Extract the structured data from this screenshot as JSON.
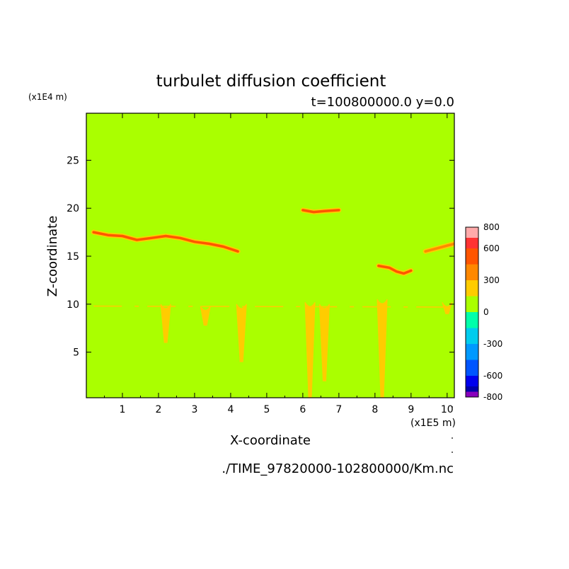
{
  "chart_data": {
    "type": "heatmap",
    "title": "turbulet diffusion coefficient",
    "subtitle": "t=100800000.0 y=0.0",
    "xlabel": "X-coordinate",
    "ylabel": "Z-coordinate",
    "x_unit": "(x1E5 m)",
    "y_unit": "(x1E4 m)",
    "source_file": "./TIME_97820000-102800000/Km.nc",
    "xlim": [
      0,
      10.2
    ],
    "ylim": [
      0.25,
      29.9
    ],
    "x_ticks": [
      1,
      2,
      3,
      4,
      5,
      6,
      7,
      8,
      9,
      10
    ],
    "y_ticks": [
      5,
      10,
      15,
      20,
      25
    ],
    "background_level": "0 to 300",
    "colorbar": {
      "tick_labels": [
        "800",
        "600",
        "300",
        "0",
        "-300",
        "-600",
        "-800"
      ],
      "levels": [
        {
          "from": 700,
          "to": 800,
          "color": "#ffaaaa"
        },
        {
          "from": 600,
          "to": 700,
          "color": "#ff3333"
        },
        {
          "from": 450,
          "to": 600,
          "color": "#ff5500"
        },
        {
          "from": 300,
          "to": 450,
          "color": "#ff8800"
        },
        {
          "from": 150,
          "to": 300,
          "color": "#ffcc00"
        },
        {
          "from": 0,
          "to": 150,
          "color": "#aaff00"
        },
        {
          "from": -150,
          "to": 0,
          "color": "#00ffaa"
        },
        {
          "from": -300,
          "to": -150,
          "color": "#00ccee"
        },
        {
          "from": -450,
          "to": -300,
          "color": "#0099ff"
        },
        {
          "from": -600,
          "to": -450,
          "color": "#0055ff"
        },
        {
          "from": -700,
          "to": -600,
          "color": "#0000ee"
        },
        {
          "from": -750,
          "to": -700,
          "color": "#0000aa"
        },
        {
          "from": -800,
          "to": -750,
          "color": "#8800bb"
        }
      ]
    },
    "features": [
      {
        "name": "upper-band-left",
        "level": "high",
        "points": [
          [
            0.2,
            17.5
          ],
          [
            0.6,
            17.2
          ],
          [
            1.0,
            17.1
          ],
          [
            1.4,
            16.7
          ],
          [
            1.8,
            16.9
          ],
          [
            2.2,
            17.1
          ],
          [
            2.6,
            16.9
          ],
          [
            3.0,
            16.5
          ],
          [
            3.4,
            16.3
          ],
          [
            3.8,
            16.0
          ],
          [
            4.2,
            15.5
          ]
        ]
      },
      {
        "name": "upper-band-right",
        "level": "high",
        "points": [
          [
            8.1,
            14.0
          ],
          [
            8.4,
            13.8
          ],
          [
            8.6,
            13.4
          ],
          [
            8.8,
            13.2
          ],
          [
            9.0,
            13.5
          ]
        ]
      },
      {
        "name": "upper-band-far-right",
        "level": "mid",
        "points": [
          [
            9.4,
            15.5
          ],
          [
            9.7,
            15.8
          ],
          [
            10.0,
            16.1
          ],
          [
            10.2,
            16.3
          ]
        ]
      },
      {
        "name": "cloud-top-patch",
        "level": "high",
        "points": [
          [
            6.0,
            19.8
          ],
          [
            6.3,
            19.6
          ],
          [
            6.6,
            19.7
          ],
          [
            7.0,
            19.8
          ]
        ]
      },
      {
        "name": "plume-x2.2",
        "level": "low",
        "x": 2.2,
        "z_top": 10.0,
        "z_bottom": 6.0
      },
      {
        "name": "plume-x3.3",
        "level": "low",
        "x": 3.3,
        "z_top": 9.8,
        "z_bottom": 7.8
      },
      {
        "name": "plume-x4.3",
        "level": "low",
        "x": 4.3,
        "z_top": 10.0,
        "z_bottom": 4.0
      },
      {
        "name": "plume-x6.2",
        "level": "low",
        "x": 6.2,
        "z_top": 10.2,
        "z_bottom": 0.3
      },
      {
        "name": "plume-x6.6",
        "level": "low",
        "x": 6.6,
        "z_top": 10.0,
        "z_bottom": 2.0
      },
      {
        "name": "plume-x8.2",
        "level": "low",
        "x": 8.2,
        "z_top": 10.5,
        "z_bottom": 0.3
      },
      {
        "name": "plume-x10.0",
        "level": "low",
        "x": 10.0,
        "z_top": 10.2,
        "z_bottom": 9.0
      }
    ]
  }
}
